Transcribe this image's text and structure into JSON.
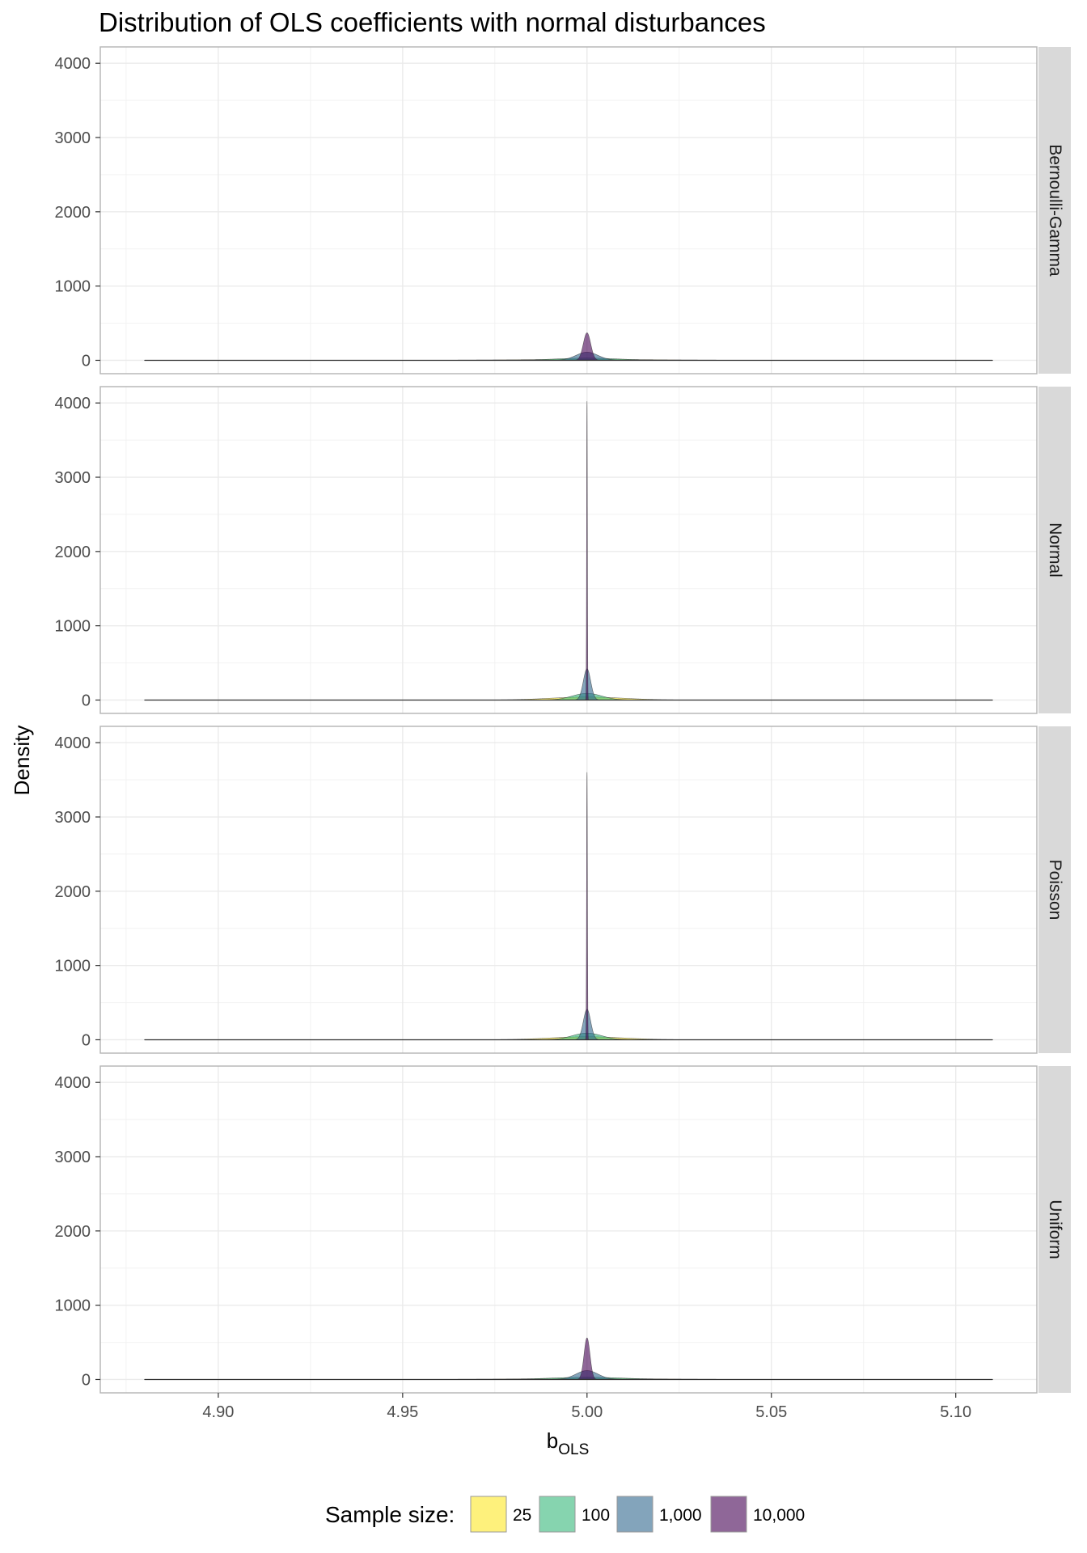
{
  "chart_data": {
    "type": "area",
    "title": "Distribution of OLS coefficients with normal disturbances",
    "xlabel": {
      "main": "b",
      "subscript": "OLS"
    },
    "ylabel": "Density",
    "xlim": [
      4.868,
      5.122
    ],
    "ylim": [
      -180,
      4220
    ],
    "x_ticks": [
      4.9,
      4.95,
      5.0,
      5.05,
      5.1
    ],
    "x_tick_labels": [
      "4.90",
      "4.95",
      "5.00",
      "5.05",
      "5.10"
    ],
    "y_ticks": [
      0,
      1000,
      2000,
      3000,
      4000
    ],
    "y_tick_labels": [
      "0",
      "1000",
      "2000",
      "3000",
      "4000"
    ],
    "x_range": [
      4.88,
      5.11
    ],
    "grid": true,
    "legend": {
      "position": "bottom",
      "title": "Sample size:",
      "entries": [
        {
          "label": "25",
          "color": "#FDE725"
        },
        {
          "label": "100",
          "color": "#35B779"
        },
        {
          "label": "1,000",
          "color": "#31688E"
        },
        {
          "label": "10,000",
          "color": "#440154"
        }
      ]
    },
    "fill_opacity": 0.6,
    "center": 5.0,
    "panels": [
      {
        "label": "Bernoulli-Gamma",
        "series": [
          {
            "name": "25",
            "peak": 12,
            "sd": 0.02
          },
          {
            "name": "100",
            "peak": 30,
            "sd": 0.0085
          },
          {
            "name": "1,000",
            "peak": 110,
            "sd": 0.003
          },
          {
            "name": "10,000",
            "peak": 370,
            "sd": 0.001
          }
        ]
      },
      {
        "label": "Normal",
        "series": [
          {
            "name": "25",
            "peak": 40,
            "sd": 0.01
          },
          {
            "name": "100",
            "peak": 90,
            "sd": 0.004
          },
          {
            "name": "1,000",
            "peak": 420,
            "sd": 0.001
          },
          {
            "name": "10,000",
            "peak": 4020,
            "sd": 0.0001
          }
        ]
      },
      {
        "label": "Poisson",
        "series": [
          {
            "name": "25",
            "peak": 40,
            "sd": 0.01
          },
          {
            "name": "100",
            "peak": 90,
            "sd": 0.004
          },
          {
            "name": "1,000",
            "peak": 410,
            "sd": 0.001
          },
          {
            "name": "10,000",
            "peak": 3600,
            "sd": 0.00011
          }
        ]
      },
      {
        "label": "Uniform",
        "series": [
          {
            "name": "25",
            "peak": 12,
            "sd": 0.02
          },
          {
            "name": "100",
            "peak": 30,
            "sd": 0.01
          },
          {
            "name": "1,000",
            "peak": 120,
            "sd": 0.003
          },
          {
            "name": "10,000",
            "peak": 560,
            "sd": 0.0008
          }
        ]
      }
    ]
  }
}
